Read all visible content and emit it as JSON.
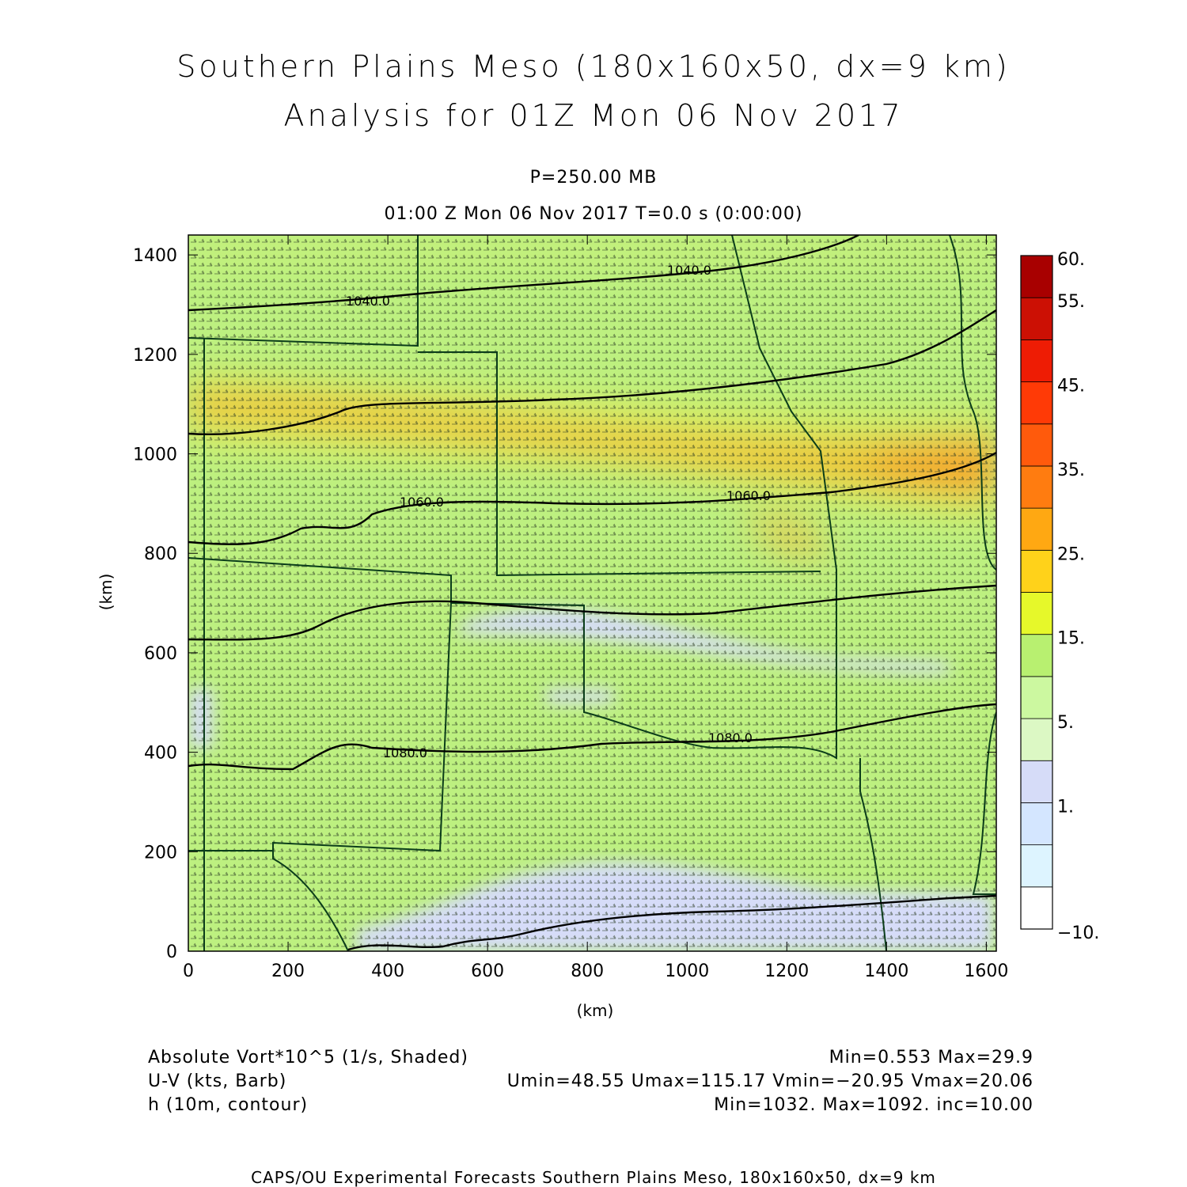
{
  "titles": {
    "line1": "Southern Plains Meso (180x160x50, dx=9 km)",
    "line2": "Analysis for 01Z Mon 06 Nov 2017",
    "level": "P=250.00 MB",
    "time": "01:00 Z Mon 06 Nov 2017    T=0.0 s (0:00:00)"
  },
  "axes": {
    "x_label": "(km)",
    "y_label": "(km)",
    "x_ticks": [
      0,
      200,
      400,
      600,
      800,
      1000,
      1200,
      1400,
      1600
    ],
    "y_ticks": [
      0,
      200,
      400,
      600,
      800,
      1000,
      1200,
      1400
    ],
    "x_range": [
      0,
      1620
    ],
    "y_range": [
      0,
      1440
    ]
  },
  "colorbar": {
    "labels": [
      "60.",
      "55.",
      "45.",
      "35.",
      "25.",
      "15.",
      "5.",
      "1.",
      "−10."
    ],
    "colors": [
      "#ffffff",
      "#ddf4ff",
      "#d4e6ff",
      "#d6dcf8",
      "#dcf8c4",
      "#ccf8a0",
      "#b8f070",
      "#e6f82a",
      "#ffd21a",
      "#ffa812",
      "#ff7c10",
      "#ff5a0c",
      "#ff3a06",
      "#ee1c04",
      "#cc1004",
      "#a80000"
    ]
  },
  "contours": {
    "labels": [
      "1040.0",
      "1040.0",
      "1060.0",
      "1060.0",
      "1080.0",
      "1080.0"
    ],
    "color": "#000000",
    "border_color": "#0b3d1a"
  },
  "legend": {
    "field1": "Absolute Vort*10^5 (1/s, Shaded)",
    "field1_stats": "Min=0.553 Max=29.9",
    "field2": "U-V (kts, Barb)",
    "field2_stats": "Umin=48.55 Umax=115.17 Vmin=−20.95 Vmax=20.06",
    "field3": "h (10m, contour)",
    "field3_stats": "Min=1032. Max=1092. inc=10.00"
  },
  "credit": "CAPS/OU Experimental Forecasts  Southern Plains Meso, 180x160x50, dx=9 km"
}
